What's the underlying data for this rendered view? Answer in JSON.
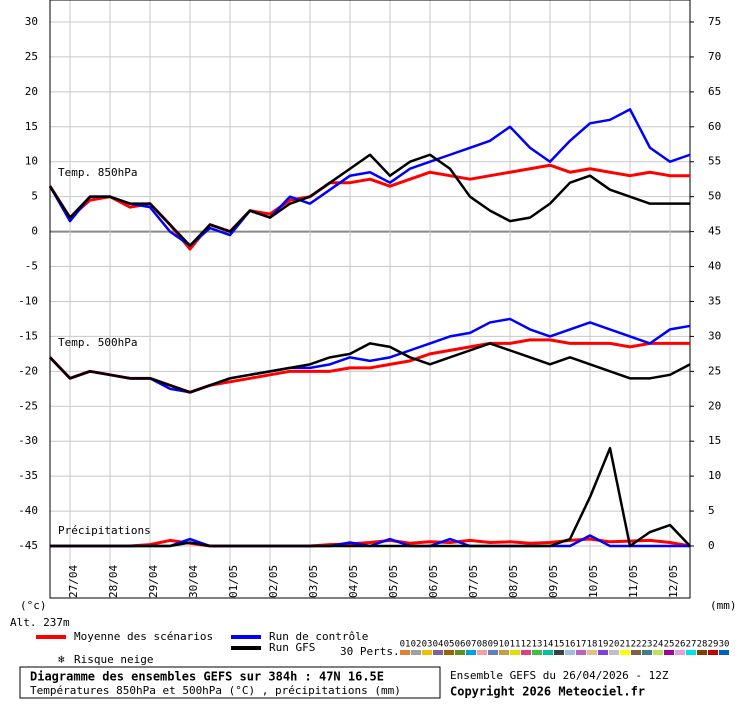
{
  "chart_data": {
    "type": "line",
    "title": "Diagramme des ensembles GEFS sur 384h : 47N 16.5E",
    "subtitle": "Températures 850hPa et 500hPa (°C) , précipitations (mm)",
    "run_info": "Ensemble GEFS du 26/04/2026 - 12Z",
    "copyright": "Copyright 2026 Meteociel.fr",
    "y_label": "(°c)",
    "y2_label": "(mm)",
    "altitude": "Alt. 237m",
    "annotations": [
      "Temp. 850hPa",
      "Temp. 500hPa",
      "Précipitations"
    ],
    "snow_label": "Risque neige",
    "perturbations_label": "30 Perts.",
    "x": [
      0,
      12,
      24,
      36,
      48,
      60,
      72,
      84,
      96,
      108,
      120,
      132,
      144,
      156,
      168,
      180,
      192,
      204,
      216,
      228,
      240,
      252,
      264,
      276,
      288,
      300,
      312,
      324,
      336,
      348,
      360,
      372,
      384
    ],
    "xlim": [
      0,
      384
    ],
    "xticks": [
      {
        "value": 12,
        "label": "27/04"
      },
      {
        "value": 36,
        "label": "28/04"
      },
      {
        "value": 60,
        "label": "29/04"
      },
      {
        "value": 84,
        "label": "30/04"
      },
      {
        "value": 108,
        "label": "01/05"
      },
      {
        "value": 132,
        "label": "02/05"
      },
      {
        "value": 156,
        "label": "03/05"
      },
      {
        "value": 180,
        "label": "04/05"
      },
      {
        "value": 204,
        "label": "05/05"
      },
      {
        "value": 228,
        "label": "06/05"
      },
      {
        "value": 252,
        "label": "07/05"
      },
      {
        "value": 276,
        "label": "08/05"
      },
      {
        "value": 300,
        "label": "09/05"
      },
      {
        "value": 324,
        "label": "10/05"
      },
      {
        "value": 348,
        "label": "11/05"
      },
      {
        "value": 372,
        "label": "12/05"
      }
    ],
    "ylim": [
      -45,
      30
    ],
    "yticks": [
      30,
      25,
      20,
      15,
      10,
      5,
      0,
      -5,
      -10,
      -15,
      -20,
      -25,
      -30,
      -35,
      -40,
      -45
    ],
    "y2lim": [
      0,
      75
    ],
    "y2ticks": [
      75,
      70,
      65,
      60,
      55,
      50,
      45,
      40,
      35,
      30,
      25,
      20,
      15,
      10,
      5,
      0
    ],
    "grid": true,
    "series": [
      {
        "name": "Moyenne des scénarios",
        "color": "#ff0000",
        "values": [
          6.5,
          2,
          4.5,
          5,
          3.5,
          4,
          1,
          -2.5,
          1,
          0,
          3,
          2.5,
          4.5,
          5,
          7,
          7,
          7.5,
          6.5,
          7.5,
          8.5,
          8,
          7.5,
          8,
          8.5,
          9,
          9.5,
          8.5,
          9,
          8.5,
          8,
          8.5,
          8,
          8
        ]
      },
      {
        "name": "Run de contrôle",
        "color": "#0000ff",
        "values": [
          6.5,
          1.5,
          5,
          5,
          4,
          3.5,
          0,
          -2,
          0.5,
          -0.5,
          3,
          2,
          5,
          4,
          6,
          8,
          8.5,
          7,
          9,
          10,
          11,
          12,
          13,
          15,
          12,
          10,
          13,
          15.5,
          16,
          17.5,
          12,
          10,
          11
        ]
      },
      {
        "name": "Run GFS",
        "color": "#000000",
        "values": [
          6.5,
          2,
          5,
          5,
          4,
          4,
          1,
          -2,
          1,
          0,
          3,
          2,
          4,
          5,
          7,
          9,
          11,
          8,
          10,
          11,
          9,
          5,
          3,
          1.5,
          2,
          4,
          7,
          8,
          6,
          5,
          4,
          4,
          4
        ]
      },
      {
        "name": "Moyenne des scénarios",
        "color": "#ff0000",
        "values": [
          -18,
          -21,
          -20,
          -20.5,
          -21,
          -21,
          -22,
          -23,
          -22,
          -21.5,
          -21,
          -20.5,
          -20,
          -20,
          -20,
          -19.5,
          -19.5,
          -19,
          -18.5,
          -17.5,
          -17,
          -16.5,
          -16,
          -16,
          -15.5,
          -15.5,
          -16,
          -16,
          -16,
          -16.5,
          -16,
          -16,
          -16
        ]
      },
      {
        "name": "Run de contrôle",
        "color": "#0000ff",
        "values": [
          -18,
          -21,
          -20,
          -20.5,
          -21,
          -21,
          -22.5,
          -23,
          -22,
          -21,
          -20.5,
          -20,
          -19.5,
          -19.5,
          -19,
          -18,
          -18.5,
          -18,
          -17,
          -16,
          -15,
          -14.5,
          -13,
          -12.5,
          -14,
          -15,
          -14,
          -13,
          -14,
          -15,
          -16,
          -14,
          -13.5
        ]
      },
      {
        "name": "Run GFS",
        "color": "#000000",
        "values": [
          -18,
          -21,
          -20,
          -20.5,
          -21,
          -21,
          -22,
          -23,
          -22,
          -21,
          -20.5,
          -20,
          -19.5,
          -19,
          -18,
          -17.5,
          -16,
          -16.5,
          -18,
          -19,
          -18,
          -17,
          -16,
          -17,
          -18,
          -19,
          -18,
          -19,
          -20,
          -21,
          -21,
          -20.5,
          -19
        ]
      },
      {
        "name": "Moyenne des scénarios",
        "color": "#ff0000",
        "axis": "y2",
        "values": [
          0,
          0,
          0,
          0,
          0,
          0.2,
          0.8,
          0.4,
          0,
          0,
          0,
          0,
          0,
          0,
          0.2,
          0.3,
          0.5,
          0.8,
          0.4,
          0.6,
          0.5,
          0.8,
          0.5,
          0.6,
          0.4,
          0.5,
          0.8,
          1,
          0.6,
          0.7,
          0.8,
          0.5,
          0
        ]
      },
      {
        "name": "Run de contrôle",
        "color": "#0000ff",
        "axis": "y2",
        "values": [
          0,
          0,
          0,
          0,
          0,
          0,
          0,
          1,
          0,
          0,
          0,
          0,
          0,
          0,
          0,
          0.5,
          0,
          1,
          0,
          0,
          1,
          0,
          0,
          0,
          0,
          0,
          0,
          1.5,
          0,
          0,
          0,
          0,
          0
        ]
      },
      {
        "name": "Run GFS",
        "color": "#000000",
        "axis": "y2",
        "values": [
          0,
          0,
          0,
          0,
          0,
          0,
          0,
          0.5,
          0,
          0,
          0,
          0,
          0,
          0,
          0,
          0,
          0,
          0,
          0,
          0,
          0,
          0,
          0,
          0,
          0,
          0,
          1,
          7,
          14,
          0,
          2,
          3,
          0
        ]
      }
    ],
    "perturbations": [
      {
        "name": "01",
        "color": "#e08030"
      },
      {
        "name": "02",
        "color": "#a0a0a0"
      },
      {
        "name": "03",
        "color": "#f0c000"
      },
      {
        "name": "04",
        "color": "#8060a0"
      },
      {
        "name": "05",
        "color": "#a06000"
      },
      {
        "name": "06",
        "color": "#609020"
      },
      {
        "name": "07",
        "color": "#00a0e0"
      },
      {
        "name": "08",
        "color": "#f0a0a0"
      },
      {
        "name": "09",
        "color": "#6080c0"
      },
      {
        "name": "10",
        "color": "#c0a040"
      },
      {
        "name": "11",
        "color": "#e0e000"
      },
      {
        "name": "12",
        "color": "#e04080"
      },
      {
        "name": "13",
        "color": "#40c040"
      },
      {
        "name": "14",
        "color": "#00c0a0"
      },
      {
        "name": "15",
        "color": "#404040"
      },
      {
        "name": "16",
        "color": "#a0c0e0"
      },
      {
        "name": "17",
        "color": "#c060c0"
      },
      {
        "name": "18",
        "color": "#e0c080"
      },
      {
        "name": "19",
        "color": "#8040e0"
      },
      {
        "name": "20",
        "color": "#c0c0c0"
      },
      {
        "name": "21",
        "color": "#ffff00"
      },
      {
        "name": "22",
        "color": "#806040"
      },
      {
        "name": "23",
        "color": "#408080"
      },
      {
        "name": "24",
        "color": "#c0e060"
      },
      {
        "name": "25",
        "color": "#a000a0"
      },
      {
        "name": "26",
        "color": "#e0a0e0"
      },
      {
        "name": "27",
        "color": "#00e0e0"
      },
      {
        "name": "28",
        "color": "#804000"
      },
      {
        "name": "29",
        "color": "#c00000"
      },
      {
        "name": "30",
        "color": "#0060c0"
      }
    ]
  }
}
